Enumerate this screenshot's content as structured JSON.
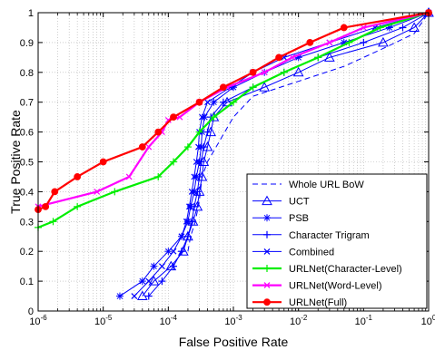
{
  "chart_data": {
    "type": "line",
    "title": "",
    "xlabel": "False Positive Rate",
    "ylabel": "True Positive Rate",
    "xscale": "log",
    "xlim": [
      1e-06,
      1
    ],
    "ylim": [
      0,
      1
    ],
    "grid": "on (dotted, major and minor)",
    "legend_position": "bottom-right",
    "x_tick_labels": [
      "10^-6",
      "10^-5",
      "10^-4",
      "10^-3",
      "10^-2",
      "10^-1",
      "10^0"
    ],
    "y_tick_labels": [
      "0",
      "0.1",
      "0.2",
      "0.3",
      "0.4",
      "0.5",
      "0.6",
      "0.7",
      "0.8",
      "0.9",
      "1"
    ],
    "colors": {
      "baselines": "#0000ff",
      "urlnet_char": "#00ee00",
      "urlnet_word": "#ff00ff",
      "urlnet_full": "#ff0000"
    },
    "series": [
      {
        "name": "Whole URL BoW",
        "style": "dashed",
        "marker": "none",
        "color": "#0000ff",
        "points": [
          [
            0.0002,
            0.2
          ],
          [
            0.00022,
            0.25
          ],
          [
            0.00026,
            0.3
          ],
          [
            0.0003,
            0.37
          ],
          [
            0.00033,
            0.45
          ],
          [
            0.0004,
            0.5
          ],
          [
            0.001,
            0.65
          ],
          [
            0.002,
            0.72
          ],
          [
            0.01,
            0.77
          ],
          [
            0.05,
            0.82
          ],
          [
            0.2,
            0.88
          ],
          [
            0.6,
            0.93
          ],
          [
            1,
            1
          ]
        ]
      },
      {
        "name": "UCT",
        "style": "solid",
        "marker": "triangle",
        "color": "#0000ff",
        "points": [
          [
            4e-05,
            0.05
          ],
          [
            6e-05,
            0.1
          ],
          [
            0.00011,
            0.15
          ],
          [
            0.00017,
            0.2
          ],
          [
            0.0002,
            0.25
          ],
          [
            0.00024,
            0.3
          ],
          [
            0.00028,
            0.35
          ],
          [
            0.0003,
            0.4
          ],
          [
            0.00033,
            0.45
          ],
          [
            0.00035,
            0.5
          ],
          [
            0.0004,
            0.55
          ],
          [
            0.00045,
            0.6
          ],
          [
            0.0005,
            0.65
          ],
          [
            0.0008,
            0.7
          ],
          [
            0.003,
            0.75
          ],
          [
            0.01,
            0.8
          ],
          [
            0.03,
            0.85
          ],
          [
            0.2,
            0.9
          ],
          [
            0.6,
            0.95
          ],
          [
            1,
            1
          ]
        ]
      },
      {
        "name": "PSB",
        "style": "solid",
        "marker": "asterisk",
        "color": "#0000ff",
        "points": [
          [
            1.8e-05,
            0.05
          ],
          [
            4e-05,
            0.1
          ],
          [
            6e-05,
            0.15
          ],
          [
            0.0001,
            0.2
          ],
          [
            0.00016,
            0.25
          ],
          [
            0.0002,
            0.3
          ],
          [
            0.00022,
            0.35
          ],
          [
            0.00025,
            0.4
          ],
          [
            0.00027,
            0.45
          ],
          [
            0.0003,
            0.5
          ],
          [
            0.00032,
            0.55
          ],
          [
            0.00033,
            0.6
          ],
          [
            0.00036,
            0.65
          ],
          [
            0.0005,
            0.7
          ],
          [
            0.001,
            0.75
          ],
          [
            0.003,
            0.8
          ],
          [
            0.01,
            0.85
          ],
          [
            0.05,
            0.9
          ],
          [
            0.25,
            0.95
          ],
          [
            1,
            1
          ]
        ]
      },
      {
        "name": "Character Trigram",
        "style": "solid",
        "marker": "plus",
        "color": "#0000ff",
        "points": [
          [
            5e-05,
            0.05
          ],
          [
            8e-05,
            0.1
          ],
          [
            0.00012,
            0.15
          ],
          [
            0.00016,
            0.2
          ],
          [
            0.0002,
            0.25
          ],
          [
            0.00023,
            0.3
          ],
          [
            0.00025,
            0.35
          ],
          [
            0.00028,
            0.4
          ],
          [
            0.0003,
            0.45
          ],
          [
            0.00032,
            0.5
          ],
          [
            0.00035,
            0.55
          ],
          [
            0.0004,
            0.6
          ],
          [
            0.00045,
            0.65
          ],
          [
            0.0007,
            0.7
          ],
          [
            0.002,
            0.75
          ],
          [
            0.006,
            0.8
          ],
          [
            0.02,
            0.85
          ],
          [
            0.1,
            0.9
          ],
          [
            0.4,
            0.95
          ],
          [
            1,
            1
          ]
        ]
      },
      {
        "name": "Combined",
        "style": "solid",
        "marker": "x",
        "color": "#0000ff",
        "points": [
          [
            3e-05,
            0.05
          ],
          [
            5e-05,
            0.1
          ],
          [
            8e-05,
            0.15
          ],
          [
            0.00012,
            0.2
          ],
          [
            0.00016,
            0.25
          ],
          [
            0.00019,
            0.3
          ],
          [
            0.00021,
            0.35
          ],
          [
            0.00023,
            0.4
          ],
          [
            0.00025,
            0.45
          ],
          [
            0.00027,
            0.5
          ],
          [
            0.00029,
            0.55
          ],
          [
            0.0003,
            0.6
          ],
          [
            0.00033,
            0.65
          ],
          [
            0.0004,
            0.7
          ],
          [
            0.0009,
            0.75
          ],
          [
            0.002,
            0.8
          ],
          [
            0.006,
            0.85
          ],
          [
            0.03,
            0.9
          ],
          [
            0.15,
            0.95
          ],
          [
            1,
            1
          ]
        ]
      },
      {
        "name": "URLNet(Character-Level)",
        "style": "solid",
        "marker": "plus",
        "color": "#00ee00",
        "points": [
          [
            1e-06,
            0.28
          ],
          [
            1.7e-06,
            0.3
          ],
          [
            4e-06,
            0.35
          ],
          [
            1.5e-05,
            0.4
          ],
          [
            7e-05,
            0.45
          ],
          [
            0.00012,
            0.5
          ],
          [
            0.0002,
            0.55
          ],
          [
            0.0003,
            0.6
          ],
          [
            0.0005,
            0.65
          ],
          [
            0.001,
            0.7
          ],
          [
            0.002,
            0.75
          ],
          [
            0.006,
            0.8
          ],
          [
            0.02,
            0.85
          ],
          [
            0.06,
            0.9
          ],
          [
            0.18,
            0.95
          ],
          [
            1,
            1
          ]
        ]
      },
      {
        "name": "URLNet(Word-Level)",
        "style": "solid",
        "marker": "x",
        "color": "#ff00ff",
        "points": [
          [
            1e-06,
            0.35
          ],
          [
            8e-06,
            0.4
          ],
          [
            2.5e-05,
            0.45
          ],
          [
            5e-05,
            0.55
          ],
          [
            8e-05,
            0.6
          ],
          [
            0.0001,
            0.64
          ],
          [
            0.00015,
            0.65
          ],
          [
            0.0003,
            0.7
          ],
          [
            0.0008,
            0.75
          ],
          [
            0.003,
            0.8
          ],
          [
            0.008,
            0.85
          ],
          [
            0.03,
            0.9
          ],
          [
            0.1,
            0.95
          ],
          [
            1,
            1
          ]
        ]
      },
      {
        "name": "URLNet(Full)",
        "style": "solid",
        "marker": "circle",
        "color": "#ff0000",
        "points": [
          [
            1e-06,
            0.34
          ],
          [
            1.3e-06,
            0.35
          ],
          [
            1.8e-06,
            0.4
          ],
          [
            4e-06,
            0.45
          ],
          [
            1e-05,
            0.5
          ],
          [
            4e-05,
            0.55
          ],
          [
            7e-05,
            0.6
          ],
          [
            0.00012,
            0.65
          ],
          [
            0.0003,
            0.7
          ],
          [
            0.0007,
            0.75
          ],
          [
            0.002,
            0.8
          ],
          [
            0.005,
            0.85
          ],
          [
            0.015,
            0.9
          ],
          [
            0.05,
            0.95
          ],
          [
            1,
            1
          ]
        ]
      }
    ]
  }
}
